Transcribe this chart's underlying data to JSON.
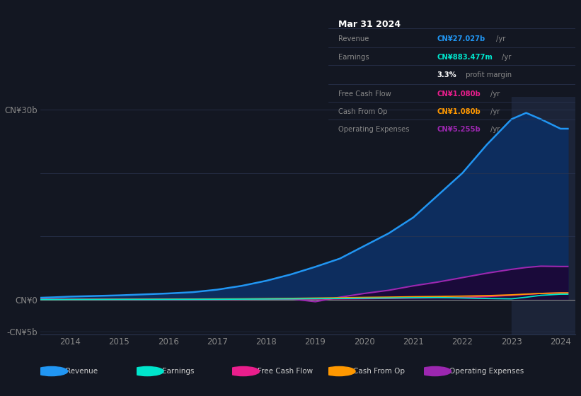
{
  "bg_color": "#131722",
  "title": "Mar 31 2024",
  "years": [
    2013.3,
    2013.7,
    2014.0,
    2014.5,
    2015.0,
    2015.5,
    2016.0,
    2016.5,
    2017.0,
    2017.5,
    2018.0,
    2018.5,
    2019.0,
    2019.5,
    2020.0,
    2020.5,
    2021.0,
    2021.5,
    2022.0,
    2022.5,
    2023.0,
    2023.3,
    2023.6,
    2024.0,
    2024.15
  ],
  "revenue": [
    0.3,
    0.4,
    0.5,
    0.6,
    0.7,
    0.85,
    1.0,
    1.2,
    1.6,
    2.2,
    3.0,
    4.0,
    5.2,
    6.5,
    8.5,
    10.5,
    13.0,
    16.5,
    20.0,
    24.5,
    28.5,
    29.5,
    28.5,
    27.0,
    27.0
  ],
  "earnings": [
    0.03,
    0.03,
    0.04,
    0.04,
    0.05,
    0.05,
    0.06,
    0.07,
    0.08,
    0.1,
    0.12,
    0.14,
    0.18,
    0.2,
    0.25,
    0.28,
    0.32,
    0.35,
    0.28,
    0.2,
    0.15,
    0.4,
    0.7,
    0.88,
    0.88
  ],
  "free_cash": [
    0.01,
    0.02,
    0.02,
    0.03,
    0.03,
    0.04,
    0.04,
    0.05,
    0.06,
    0.07,
    0.09,
    0.1,
    0.12,
    0.15,
    0.18,
    0.22,
    0.27,
    0.32,
    0.38,
    0.5,
    0.7,
    0.85,
    1.0,
    1.08,
    1.08
  ],
  "cash_from_op": [
    0.04,
    0.04,
    0.05,
    0.06,
    0.07,
    0.08,
    0.09,
    0.11,
    0.13,
    0.15,
    0.18,
    0.22,
    0.27,
    0.32,
    0.38,
    0.42,
    0.48,
    0.52,
    0.58,
    0.65,
    0.78,
    0.9,
    1.0,
    1.08,
    1.08
  ],
  "op_expenses": [
    0.08,
    0.08,
    0.08,
    0.09,
    0.09,
    0.09,
    0.1,
    0.1,
    0.1,
    0.1,
    0.12,
    0.15,
    -0.3,
    0.4,
    1.0,
    1.5,
    2.2,
    2.8,
    3.5,
    4.2,
    4.8,
    5.1,
    5.3,
    5.255,
    5.255
  ],
  "ylim": [
    -5.5,
    32
  ],
  "yticks": [
    -5,
    0,
    30
  ],
  "ytick_labels": [
    "-CN¥5b",
    "CN¥0",
    "CN¥30b"
  ],
  "xtick_labels": [
    "2014",
    "2015",
    "2016",
    "2017",
    "2018",
    "2019",
    "2020",
    "2021",
    "2022",
    "2023",
    "2024"
  ],
  "xtick_positions": [
    2014,
    2015,
    2016,
    2017,
    2018,
    2019,
    2020,
    2021,
    2022,
    2023,
    2024
  ],
  "legend": [
    {
      "label": "Revenue",
      "color": "#2196f3"
    },
    {
      "label": "Earnings",
      "color": "#00e5cc"
    },
    {
      "label": "Free Cash Flow",
      "color": "#e91e8c"
    },
    {
      "label": "Cash From Op",
      "color": "#ff9800"
    },
    {
      "label": "Operating Expenses",
      "color": "#9c27b0"
    }
  ],
  "shade_start": 2023.0,
  "table_rows": [
    {
      "label": "Revenue",
      "value": "CN¥27.027b",
      "unit": "/yr",
      "color": "#2196f3"
    },
    {
      "label": "Earnings",
      "value": "CN¥883.477m",
      "unit": "/yr",
      "color": "#00e5cc"
    },
    {
      "label": "",
      "value": "3.3%",
      "unit": " profit margin",
      "color": "#ffffff",
      "bold_value": true
    },
    {
      "label": "Free Cash Flow",
      "value": "CN¥1.080b",
      "unit": "/yr",
      "color": "#e91e8c"
    },
    {
      "label": "Cash From Op",
      "value": "CN¥1.080b",
      "unit": "/yr",
      "color": "#ff9800"
    },
    {
      "label": "Operating Expenses",
      "value": "CN¥5.255b",
      "unit": "/yr",
      "color": "#9c27b0"
    }
  ]
}
